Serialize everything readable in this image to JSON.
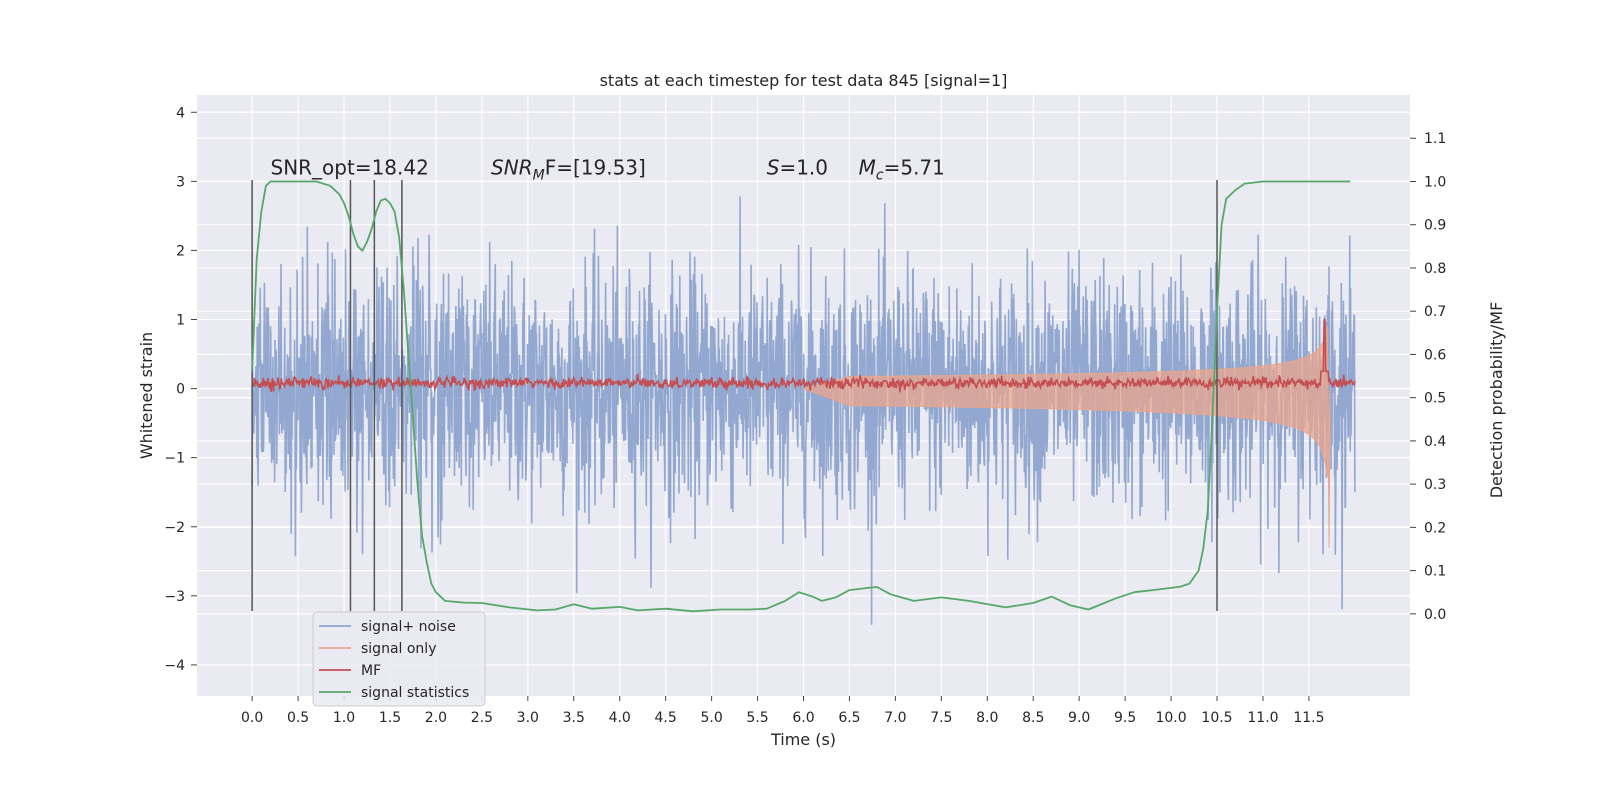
{
  "chart_data": {
    "type": "line",
    "title": "stats at each timestep for test data 845 [signal=1]",
    "xlabel": "Time (s)",
    "ylabel": "Whitened strain",
    "y2label": "Detection probability/MF",
    "xlim": [
      -0.6,
      12.6
    ],
    "ylim": [
      -4.45,
      4.25
    ],
    "y2lim": [
      -0.19,
      1.2
    ],
    "x_ticks": [
      "0.0",
      "0.5",
      "1.0",
      "1.5",
      "2.0",
      "2.5",
      "3.0",
      "3.5",
      "4.0",
      "4.5",
      "5.0",
      "5.5",
      "6.0",
      "6.5",
      "7.0",
      "7.5",
      "8.0",
      "8.5",
      "9.0",
      "9.5",
      "10.0",
      "10.5",
      "11.0",
      "11.5"
    ],
    "y_ticks": [
      "4",
      "3",
      "2",
      "1",
      "0",
      "−1",
      "−2",
      "−3",
      "−4"
    ],
    "y2_ticks": [
      "1.1",
      "1.0",
      "0.9",
      "0.8",
      "0.7",
      "0.6",
      "0.5",
      "0.4",
      "0.3",
      "0.2",
      "0.1",
      "0.0"
    ],
    "annotations": [
      {
        "text": "SNR_opt=18.42",
        "x": 0.2,
        "y": 3.1
      },
      {
        "text": "SNR",
        "sub": "M",
        "rest": "F=[19.53]",
        "x": 2.6,
        "y": 3.1
      },
      {
        "text": "S",
        "rest": "=1.0",
        "x": 5.6,
        "y": 3.1
      },
      {
        "text": "M",
        "sub": "c",
        "rest": "=5.71",
        "x": 6.6,
        "y": 3.1
      }
    ],
    "vlines": [
      0.0,
      1.07,
      1.33,
      1.63,
      10.5
    ],
    "vline_range": [
      -3.22,
      3.02
    ],
    "series": [
      {
        "name": "signal+ noise",
        "color": "#8ea4ce",
        "kind": "noise",
        "x_range": [
          0.0,
          12.0
        ],
        "envelope_std": 0.85
      },
      {
        "name": "signal only",
        "color": "#e9a58c",
        "kind": "chirp",
        "x_start": 6.0,
        "x_merger": 11.7,
        "peak": 1.65
      },
      {
        "name": "MF",
        "color": "#c44e52",
        "kind": "mf",
        "x_range": [
          0.0,
          12.0
        ],
        "baseline": 0.08,
        "peak_x": 11.67,
        "peak_y": 1.0
      },
      {
        "name": "signal statistics",
        "color": "#55a868",
        "kind": "prob",
        "x": [
          0.0,
          0.05,
          0.1,
          0.15,
          0.2,
          0.3,
          0.5,
          0.7,
          0.85,
          0.95,
          1.0,
          1.05,
          1.1,
          1.15,
          1.2,
          1.25,
          1.3,
          1.35,
          1.4,
          1.45,
          1.5,
          1.55,
          1.6,
          1.65,
          1.7,
          1.75,
          1.8,
          1.85,
          1.9,
          1.95,
          2.0,
          2.1,
          2.3,
          2.5,
          2.8,
          3.1,
          3.3,
          3.5,
          3.7,
          4.0,
          4.2,
          4.5,
          4.8,
          5.1,
          5.4,
          5.6,
          5.8,
          5.95,
          6.1,
          6.2,
          6.35,
          6.5,
          6.7,
          6.8,
          6.95,
          7.2,
          7.5,
          7.8,
          8.2,
          8.5,
          8.7,
          8.9,
          9.1,
          9.4,
          9.6,
          9.8,
          10.0,
          10.1,
          10.2,
          10.3,
          10.35,
          10.4,
          10.45,
          10.5,
          10.55,
          10.6,
          10.7,
          10.8,
          11.0,
          11.5,
          11.95
        ],
        "y": [
          0.56,
          0.82,
          0.93,
          0.99,
          1.0,
          1.0,
          1.0,
          1.0,
          0.99,
          0.97,
          0.95,
          0.92,
          0.88,
          0.85,
          0.84,
          0.86,
          0.89,
          0.93,
          0.956,
          0.96,
          0.95,
          0.93,
          0.87,
          0.75,
          0.6,
          0.45,
          0.3,
          0.18,
          0.12,
          0.07,
          0.05,
          0.03,
          0.026,
          0.025,
          0.015,
          0.008,
          0.01,
          0.022,
          0.012,
          0.016,
          0.008,
          0.012,
          0.006,
          0.01,
          0.01,
          0.012,
          0.03,
          0.05,
          0.04,
          0.03,
          0.038,
          0.055,
          0.06,
          0.062,
          0.045,
          0.03,
          0.038,
          0.03,
          0.015,
          0.025,
          0.04,
          0.02,
          0.01,
          0.036,
          0.05,
          0.055,
          0.06,
          0.063,
          0.07,
          0.1,
          0.15,
          0.24,
          0.45,
          0.7,
          0.9,
          0.96,
          0.98,
          0.995,
          1.0,
          1.0,
          1.0
        ]
      }
    ],
    "legend": {
      "location": "lower-left",
      "entries": [
        "signal+ noise",
        "signal only",
        "MF",
        "signal statistics"
      ]
    },
    "grid": true,
    "colors": {
      "axes_bg": "#eaeaf2",
      "grid": "#ffffff",
      "text": "#262626",
      "vline": "#555555"
    }
  }
}
